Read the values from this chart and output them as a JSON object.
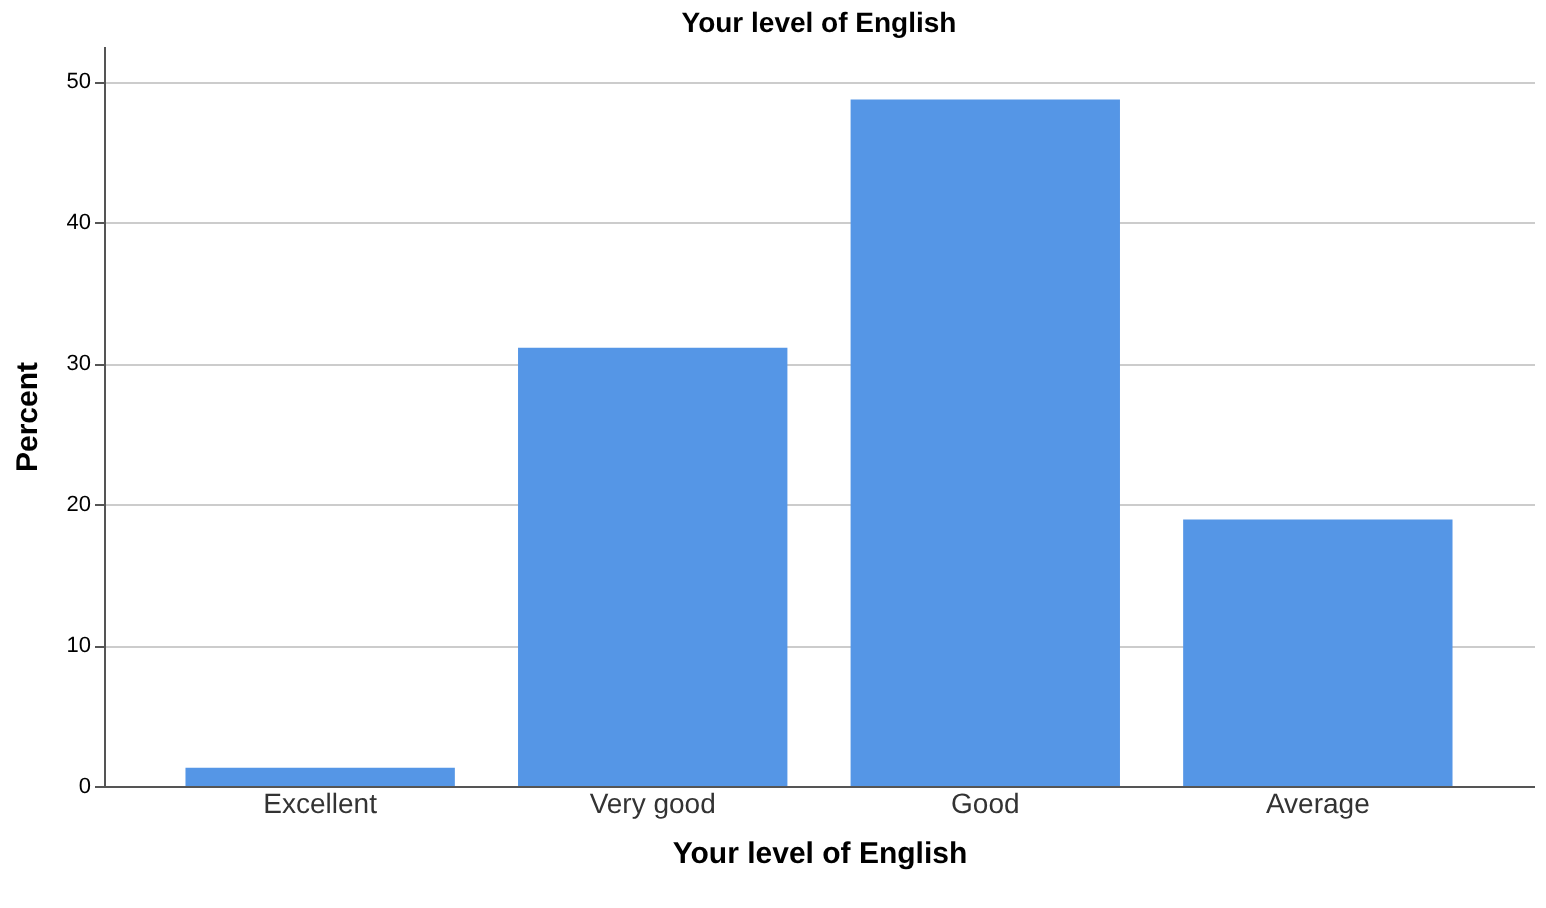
{
  "chart_data": {
    "type": "bar",
    "title": "Your level of English",
    "xlabel": "Your level of English",
    "ylabel": "Percent",
    "categories": [
      "Excellent",
      "Very good",
      "Good",
      "Average"
    ],
    "values": [
      1.3,
      31.1,
      48.7,
      18.9
    ],
    "color": "#5596e6",
    "ylim": [
      0,
      52.5
    ],
    "yticks": [
      0,
      10,
      20,
      30,
      40,
      50
    ],
    "grid": "y"
  }
}
